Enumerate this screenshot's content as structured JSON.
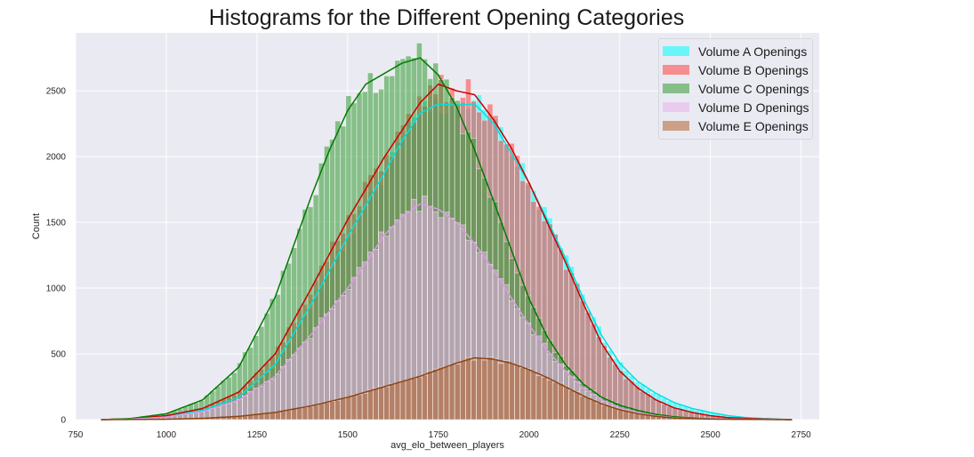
{
  "chart_data": {
    "type": "histogram",
    "title": "Histograms for the Different Opening Categories",
    "xlabel": "avg_elo_between_players",
    "ylabel": "Count",
    "xlim": [
      750,
      2800
    ],
    "ylim": [
      0,
      2940
    ],
    "x_ticks": [
      "750",
      "1000",
      "1250",
      "1500",
      "1750",
      "2000",
      "2250",
      "2500",
      "2750"
    ],
    "x_tick_values": [
      750,
      1000,
      1250,
      1500,
      1750,
      2000,
      2250,
      2500,
      2750
    ],
    "y_ticks": [
      "0",
      "500",
      "1000",
      "1500",
      "2000",
      "2500"
    ],
    "y_tick_values": [
      0,
      500,
      1000,
      1500,
      2000,
      2500
    ],
    "grid": true,
    "kde": true,
    "legend_position": "top-right",
    "bin_range": [
      820,
      2725
    ],
    "bin_width": 15,
    "series": [
      {
        "name": "Volume A Openings",
        "color": "#00ffff",
        "line_color": "#00e0e0",
        "density_points": [
          [
            820,
            0
          ],
          [
            900,
            5
          ],
          [
            1000,
            25
          ],
          [
            1100,
            70
          ],
          [
            1200,
            170
          ],
          [
            1300,
            420
          ],
          [
            1400,
            880
          ],
          [
            1500,
            1390
          ],
          [
            1600,
            1870
          ],
          [
            1650,
            2120
          ],
          [
            1700,
            2330
          ],
          [
            1750,
            2400
          ],
          [
            1800,
            2390
          ],
          [
            1850,
            2400
          ],
          [
            1900,
            2260
          ],
          [
            1950,
            2030
          ],
          [
            2000,
            1800
          ],
          [
            2050,
            1520
          ],
          [
            2100,
            1230
          ],
          [
            2150,
            920
          ],
          [
            2200,
            640
          ],
          [
            2250,
            430
          ],
          [
            2300,
            290
          ],
          [
            2350,
            200
          ],
          [
            2400,
            130
          ],
          [
            2450,
            85
          ],
          [
            2500,
            55
          ],
          [
            2550,
            30
          ],
          [
            2600,
            15
          ],
          [
            2650,
            8
          ],
          [
            2725,
            0
          ]
        ]
      },
      {
        "name": "Volume B Openings",
        "color": "#ff4040",
        "line_color": "#cc0000",
        "density_points": [
          [
            820,
            0
          ],
          [
            900,
            6
          ],
          [
            1000,
            30
          ],
          [
            1100,
            85
          ],
          [
            1200,
            210
          ],
          [
            1300,
            500
          ],
          [
            1400,
            1000
          ],
          [
            1500,
            1520
          ],
          [
            1600,
            1990
          ],
          [
            1650,
            2200
          ],
          [
            1700,
            2410
          ],
          [
            1750,
            2550
          ],
          [
            1800,
            2500
          ],
          [
            1850,
            2470
          ],
          [
            1900,
            2290
          ],
          [
            1950,
            2070
          ],
          [
            2000,
            1800
          ],
          [
            2050,
            1500
          ],
          [
            2100,
            1200
          ],
          [
            2150,
            880
          ],
          [
            2200,
            580
          ],
          [
            2250,
            370
          ],
          [
            2300,
            240
          ],
          [
            2350,
            150
          ],
          [
            2400,
            90
          ],
          [
            2450,
            55
          ],
          [
            2500,
            30
          ],
          [
            2550,
            15
          ],
          [
            2650,
            5
          ],
          [
            2725,
            0
          ]
        ]
      },
      {
        "name": "Volume C Openings",
        "color": "#339933",
        "line_color": "#007a00",
        "density_points": [
          [
            820,
            0
          ],
          [
            900,
            8
          ],
          [
            1000,
            45
          ],
          [
            1100,
            150
          ],
          [
            1200,
            400
          ],
          [
            1300,
            930
          ],
          [
            1400,
            1700
          ],
          [
            1450,
            2050
          ],
          [
            1500,
            2350
          ],
          [
            1550,
            2550
          ],
          [
            1600,
            2630
          ],
          [
            1650,
            2710
          ],
          [
            1700,
            2750
          ],
          [
            1750,
            2620
          ],
          [
            1800,
            2380
          ],
          [
            1850,
            2050
          ],
          [
            1900,
            1680
          ],
          [
            1950,
            1300
          ],
          [
            2000,
            920
          ],
          [
            2050,
            630
          ],
          [
            2100,
            420
          ],
          [
            2150,
            270
          ],
          [
            2200,
            170
          ],
          [
            2250,
            110
          ],
          [
            2300,
            70
          ],
          [
            2350,
            40
          ],
          [
            2400,
            22
          ],
          [
            2450,
            12
          ],
          [
            2500,
            6
          ],
          [
            2725,
            0
          ]
        ]
      },
      {
        "name": "Volume D Openings",
        "color": "#e9b0ee",
        "line_color": "#d89ee0",
        "density_points": [
          [
            820,
            0
          ],
          [
            900,
            3
          ],
          [
            1000,
            20
          ],
          [
            1100,
            60
          ],
          [
            1200,
            150
          ],
          [
            1300,
            330
          ],
          [
            1400,
            650
          ],
          [
            1500,
            1000
          ],
          [
            1550,
            1190
          ],
          [
            1600,
            1400
          ],
          [
            1650,
            1540
          ],
          [
            1700,
            1640
          ],
          [
            1750,
            1600
          ],
          [
            1800,
            1500
          ],
          [
            1850,
            1340
          ],
          [
            1900,
            1150
          ],
          [
            1950,
            930
          ],
          [
            2000,
            720
          ],
          [
            2050,
            530
          ],
          [
            2100,
            370
          ],
          [
            2150,
            240
          ],
          [
            2200,
            150
          ],
          [
            2250,
            90
          ],
          [
            2300,
            55
          ],
          [
            2350,
            30
          ],
          [
            2400,
            15
          ],
          [
            2450,
            8
          ],
          [
            2725,
            0
          ]
        ]
      },
      {
        "name": "Volume E Openings",
        "color": "#b3622e",
        "line_color": "#8b4513",
        "density_points": [
          [
            820,
            0
          ],
          [
            1000,
            3
          ],
          [
            1100,
            10
          ],
          [
            1200,
            25
          ],
          [
            1300,
            55
          ],
          [
            1400,
            105
          ],
          [
            1500,
            170
          ],
          [
            1600,
            250
          ],
          [
            1700,
            330
          ],
          [
            1750,
            380
          ],
          [
            1800,
            430
          ],
          [
            1850,
            470
          ],
          [
            1900,
            460
          ],
          [
            1950,
            430
          ],
          [
            2000,
            380
          ],
          [
            2050,
            320
          ],
          [
            2100,
            250
          ],
          [
            2150,
            180
          ],
          [
            2200,
            120
          ],
          [
            2250,
            75
          ],
          [
            2300,
            45
          ],
          [
            2350,
            25
          ],
          [
            2400,
            12
          ],
          [
            2500,
            4
          ],
          [
            2725,
            0
          ]
        ]
      }
    ]
  }
}
